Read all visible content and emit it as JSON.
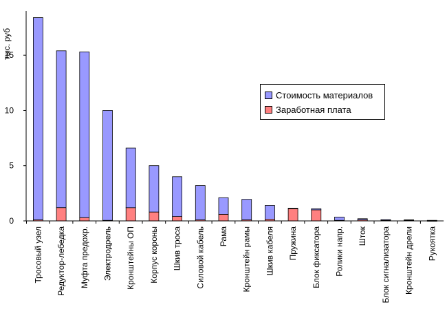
{
  "chart_data": {
    "type": "bar",
    "stacked": true,
    "ylabel": "тыс. руб",
    "ylim": [
      0,
      19
    ],
    "yticks": [
      0,
      5,
      10,
      15
    ],
    "categories": [
      "Тросовый узел",
      "Редуктор-лебедка",
      "Муфта предохр.",
      "Электродрель",
      "Кронштейны ОП",
      "Корпус короны",
      "Шкив троса",
      "Силовой кабель",
      "Рама",
      "Кронштейн рамы",
      "Шкив кабеля",
      "Пружина",
      "Блок фиксатора",
      "Ролики напр.",
      "Шток",
      "Блок сигнализатора",
      "Кронштейн дрели",
      "Рукоятка"
    ],
    "series": [
      {
        "name": "Заработная плата",
        "color": "#ff8080",
        "values": [
          0.1,
          1.2,
          0.3,
          0.05,
          1.2,
          0.8,
          0.4,
          0.1,
          0.6,
          0.1,
          0.15,
          1.1,
          1.0,
          0.05,
          0.1,
          0.05,
          0.05,
          0.02
        ]
      },
      {
        "name": "Стоимость материалов",
        "color": "#9999ff",
        "values": [
          18.3,
          14.2,
          15.0,
          9.95,
          5.4,
          4.2,
          3.6,
          3.1,
          1.5,
          1.85,
          1.25,
          0.05,
          0.1,
          0.3,
          0.1,
          0.07,
          0.05,
          0.03
        ]
      }
    ],
    "legend_placement": "right",
    "grid": false
  },
  "legend": {
    "items": [
      {
        "label": "Стоимость материалов",
        "color": "#9999ff"
      },
      {
        "label": "Заработная плата",
        "color": "#ff8080"
      }
    ]
  }
}
